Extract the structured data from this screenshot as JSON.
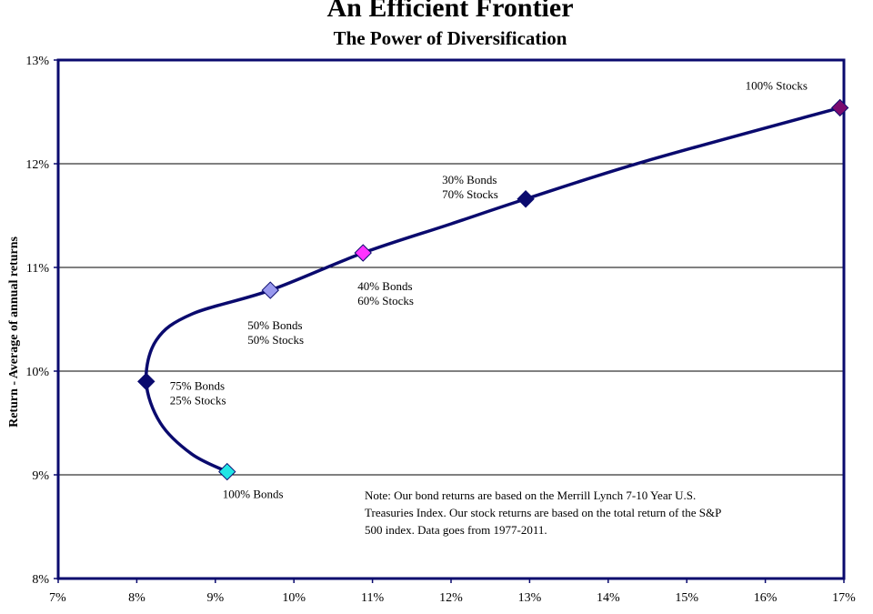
{
  "chart_data": {
    "type": "line",
    "title": "An Efficient Frontier",
    "subtitle": "The Power of Diversification",
    "xlabel": "",
    "ylabel": "Return - Average of annual returns",
    "xlim": [
      7,
      17
    ],
    "ylim": [
      8,
      13
    ],
    "x_ticks": [
      "7%",
      "8%",
      "9%",
      "10%",
      "11%",
      "12%",
      "13%",
      "14%",
      "15%",
      "16%",
      "17%"
    ],
    "y_ticks": [
      "8%",
      "9%",
      "10%",
      "11%",
      "12%",
      "13%"
    ],
    "grid": "horizontal",
    "curve": {
      "color": "#0a0a6e",
      "x": [
        9.15,
        8.7,
        8.3,
        8.12,
        8.25,
        8.7,
        9.7,
        10.88,
        12.0,
        12.95,
        14.5,
        16.95
      ],
      "y": [
        9.03,
        9.2,
        9.5,
        9.9,
        10.3,
        10.55,
        10.78,
        11.14,
        11.42,
        11.66,
        12.03,
        12.54
      ]
    },
    "points": [
      {
        "label": [
          "100% Bonds"
        ],
        "x": 9.15,
        "y": 9.03,
        "color": "#22e5e5"
      },
      {
        "label": [
          "75% Bonds",
          "25% Stocks"
        ],
        "x": 8.12,
        "y": 9.9,
        "color": "#0a0a6e"
      },
      {
        "label": [
          "50% Bonds",
          "50% Stocks"
        ],
        "x": 9.7,
        "y": 10.78,
        "color": "#9999ee"
      },
      {
        "label": [
          "40% Bonds",
          "60% Stocks"
        ],
        "x": 10.88,
        "y": 11.14,
        "color": "#ff33ff"
      },
      {
        "label": [
          "30% Bonds",
          "70% Stocks"
        ],
        "x": 12.95,
        "y": 11.66,
        "color": "#0a0a6e"
      },
      {
        "label": [
          "100% Stocks"
        ],
        "x": 16.95,
        "y": 12.54,
        "color": "#7a0a6e"
      }
    ],
    "note": [
      "Note:  Our bond returns  are based on the Merrill  Lynch  7-10 Year U.S.",
      "Treasuries  Index.  Our stock returns are based on the total return of the S&P",
      "500 index.   Data goes from  1977-2011."
    ]
  }
}
